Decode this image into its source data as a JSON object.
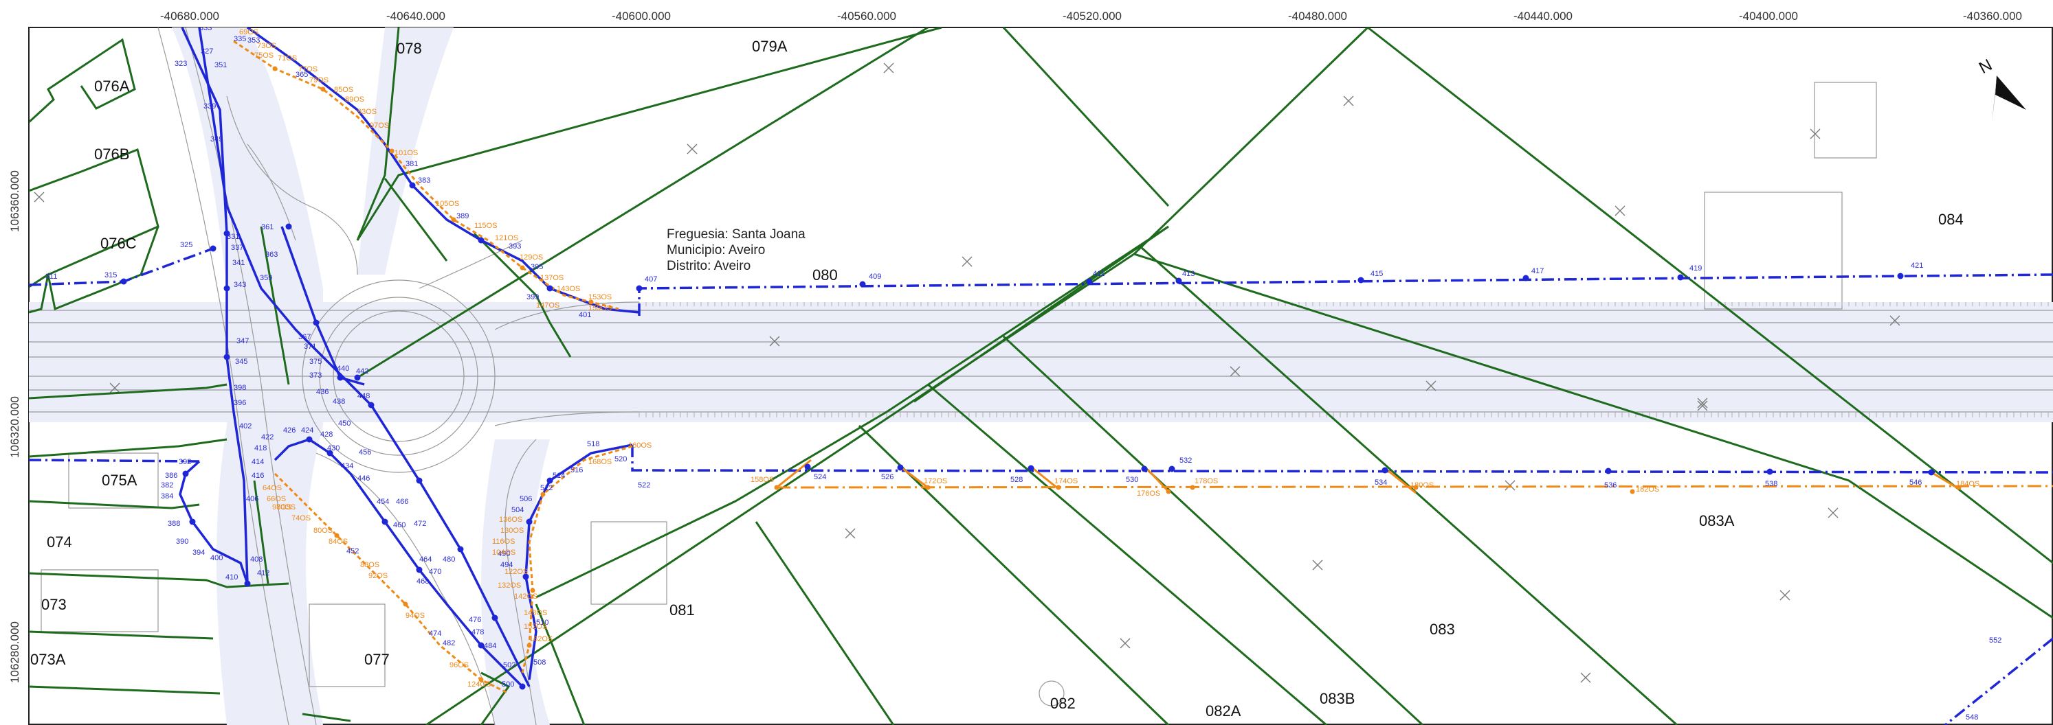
{
  "coords": {
    "x_ticks": [
      "-40680.000",
      "-40640.000",
      "-40600.000",
      "-40560.000",
      "-40520.000",
      "-40480.000",
      "-40440.000",
      "-40400.000",
      "-40360.000"
    ],
    "y_ticks": [
      "106360.000",
      "106320.000",
      "106280.000"
    ]
  },
  "annotation": {
    "line1": "Freguesia: Santa Joana",
    "line2": "Municipio: Aveiro",
    "line3": "Distrito: Aveiro"
  },
  "north": {
    "label": "N",
    "icon": "north-arrow-icon"
  },
  "parcels": [
    "078",
    "079A",
    "076A",
    "076B",
    "076C",
    "080",
    "084",
    "075A",
    "074",
    "073",
    "073A",
    "077",
    "081",
    "082",
    "082A",
    "083",
    "083B",
    "083A"
  ],
  "blue_points": [
    "333",
    "335",
    "353",
    "327",
    "323",
    "351",
    "365",
    "339",
    "349",
    "381",
    "383",
    "389",
    "393",
    "395",
    "399",
    "401",
    "361",
    "363",
    "359",
    "331",
    "337",
    "341",
    "325",
    "311",
    "315",
    "343",
    "347",
    "345",
    "398",
    "396",
    "375",
    "371",
    "367",
    "373",
    "440",
    "442",
    "448",
    "436",
    "438",
    "450",
    "456",
    "454",
    "466",
    "460",
    "472",
    "464",
    "470",
    "468",
    "480",
    "476",
    "478",
    "474",
    "482",
    "484",
    "502",
    "500",
    "508",
    "510",
    "402",
    "422",
    "424",
    "426",
    "428",
    "430",
    "434",
    "446",
    "418",
    "414",
    "416",
    "406",
    "392",
    "386",
    "382",
    "384",
    "388",
    "390",
    "394",
    "400",
    "408",
    "410",
    "412",
    "407",
    "409",
    "411",
    "413",
    "415",
    "417",
    "419",
    "421",
    "518",
    "520",
    "522",
    "506",
    "504",
    "512",
    "514",
    "516",
    "494",
    "490",
    "524",
    "526",
    "528",
    "530",
    "532",
    "534",
    "536",
    "538",
    "546",
    "552",
    "548",
    "452"
  ],
  "orange_points": [
    "69OS",
    "71OS",
    "73OS",
    "75OS",
    "77OS",
    "79OS",
    "85OS",
    "89OS",
    "93OS",
    "97OS",
    "101OS",
    "105OS",
    "115OS",
    "121OS",
    "129OS",
    "137OS",
    "143OS",
    "147OS",
    "153OS",
    "159OS",
    "158OS",
    "160OS",
    "168OS",
    "172OS",
    "174OS",
    "176OS",
    "178OS",
    "180OS",
    "182OS",
    "184OS",
    "136OS",
    "130OS",
    "116OS",
    "104OS",
    "122OS",
    "132OS",
    "142OS",
    "148OS",
    "152OS",
    "162OS",
    "64OS",
    "66OS",
    "70OS",
    "74OS",
    "80OS",
    "84OS",
    "88OS",
    "92OS",
    "94OS",
    "96OS",
    "98OS",
    "124OS"
  ],
  "colors": {
    "parcel_boundary": "#1e6b1e",
    "route_blue": "#1f26d6",
    "route_orange": "#ef8a17",
    "road_fill": "#ebedf8",
    "basemap_line": "#9a9a9a"
  }
}
